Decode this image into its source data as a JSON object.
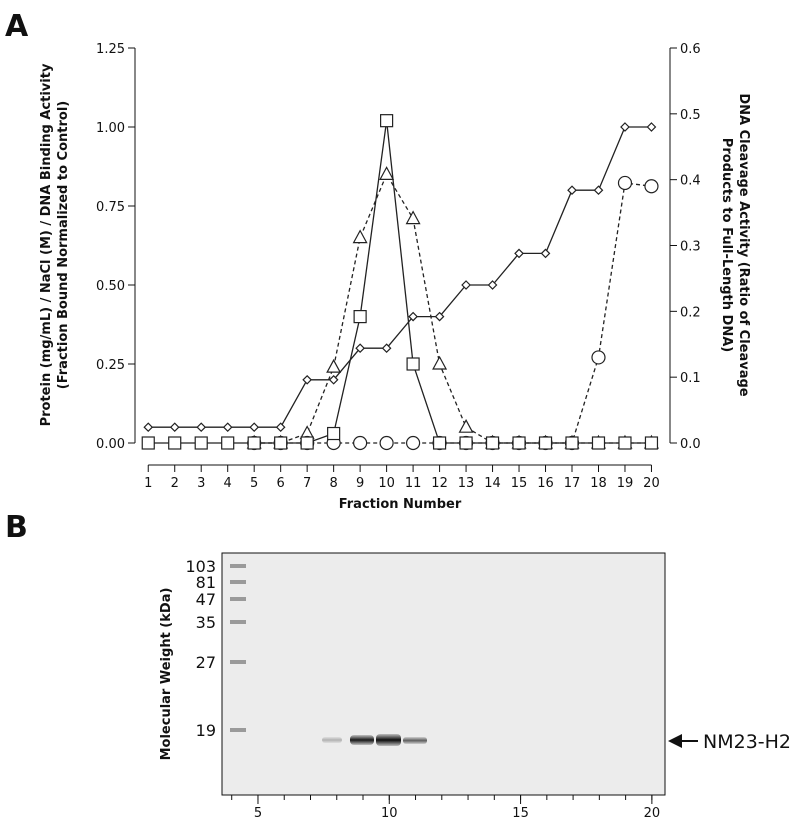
{
  "chart_data": [
    {
      "type": "line",
      "panel": "A",
      "xlabel": "Fraction Number",
      "ylabel": [
        "Protein (mg/mL) / NaCl (M) / DNA Binding Activity",
        "(Fraction Bound Normalized to Control)"
      ],
      "y2label": [
        "DNA Cleavage Activity (Ratio of Cleavage",
        "Products to Full-Length DNA)"
      ],
      "x": [
        1,
        2,
        3,
        4,
        5,
        6,
        7,
        8,
        9,
        10,
        11,
        12,
        13,
        14,
        15,
        16,
        17,
        18,
        19,
        20
      ],
      "xlim": [
        0.5,
        20.7
      ],
      "xticks": [
        1,
        2,
        3,
        4,
        5,
        6,
        7,
        8,
        9,
        10,
        11,
        12,
        13,
        14,
        15,
        16,
        17,
        18,
        19,
        20
      ],
      "ylim": [
        0,
        1.25
      ],
      "yticks": [
        {
          "value": 0,
          "label": "0.00"
        },
        0.25,
        {
          "value": 0.5,
          "label": "0.50"
        },
        0.75,
        {
          "value": 1,
          "label": "1.00"
        },
        1.25
      ],
      "y2lim": [
        0,
        0.6
      ],
      "y2ticks": [
        {
          "value": 0,
          "label": "0.0"
        },
        0.1,
        0.2,
        0.3,
        0.4,
        0.5,
        0.6
      ],
      "series": [
        {
          "color": "#222",
          "marker": "diamond",
          "dash": false,
          "axis": "y",
          "values": [
            0.05,
            0.05,
            0.05,
            0.05,
            0.05,
            0.05,
            0.2,
            0.2,
            0.3,
            0.3,
            0.4,
            0.4,
            0.5,
            0.5,
            0.6,
            0.6,
            0.8,
            0.8,
            1.0,
            1.0
          ]
        },
        {
          "color": "#222",
          "marker": "triangle",
          "dash": true,
          "axis": "y",
          "values": [
            null,
            null,
            null,
            null,
            0,
            0,
            0.03,
            0.24,
            0.65,
            0.85,
            0.71,
            0.25,
            0.05,
            0,
            0,
            0,
            0,
            0,
            0,
            0
          ]
        },
        {
          "color": "#222",
          "marker": "circle",
          "dash": true,
          "axis": "y2",
          "values": [
            null,
            null,
            null,
            null,
            0,
            0,
            0,
            0,
            0,
            0,
            0,
            0,
            0,
            0,
            0,
            0,
            0,
            0.13,
            0.395,
            0.39
          ]
        },
        {
          "color": "#222",
          "marker": "square",
          "dash": false,
          "axis": "y",
          "values": [
            0,
            0,
            0,
            0,
            0,
            0,
            0,
            0.03,
            0.4,
            1.02,
            0.25,
            0,
            0,
            0,
            0,
            0,
            0,
            0,
            0,
            0
          ]
        }
      ]
    },
    {
      "type": "gel",
      "panel": "B",
      "ylabel": "Molecular Weight (kDa)",
      "ladder": [
        103,
        81,
        47,
        35,
        27,
        19
      ],
      "xlim": [
        3.63,
        20.5
      ],
      "xticks": [
        5,
        10,
        15,
        20
      ],
      "annotation": "NM23-H2"
    }
  ]
}
